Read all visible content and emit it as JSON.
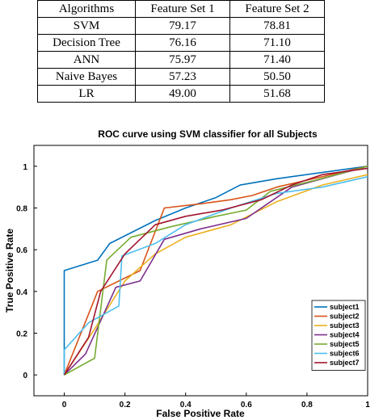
{
  "table": {
    "headers": [
      "Algorithms",
      "Feature Set 1",
      "Feature Set 2"
    ],
    "rows": [
      [
        "SVM",
        "79.17",
        "78.81"
      ],
      [
        "Decision Tree",
        "76.16",
        "71.10"
      ],
      [
        "ANN",
        "75.97",
        "71.40"
      ],
      [
        "Naive Bayes",
        "57.23",
        "50.50"
      ],
      [
        "LR",
        "49.00",
        "51.68"
      ]
    ]
  },
  "chart_data": {
    "type": "line",
    "title": "ROC curve using SVM classifier for all Subjects",
    "xlabel": "False Positive Rate",
    "ylabel": "True Positive Rate",
    "xlim": [
      -0.1,
      1.0
    ],
    "ylim": [
      -0.1,
      1.1
    ],
    "xticks": [
      "0",
      "0.2",
      "0.4",
      "0.6",
      "0.8",
      "1"
    ],
    "yticks": [
      "0",
      "0.2",
      "0.4",
      "0.6",
      "0.8",
      "1"
    ],
    "grid": false,
    "legend_position": "bottom-right",
    "series": [
      {
        "name": "subject1",
        "color": "#0072BD",
        "points": [
          [
            0,
            0
          ],
          [
            0,
            0.5
          ],
          [
            0.11,
            0.55
          ],
          [
            0.15,
            0.63
          ],
          [
            0.3,
            0.74
          ],
          [
            0.4,
            0.8
          ],
          [
            0.5,
            0.85
          ],
          [
            0.58,
            0.91
          ],
          [
            0.7,
            0.94
          ],
          [
            1,
            1
          ]
        ]
      },
      {
        "name": "subject2",
        "color": "#D95319",
        "points": [
          [
            0,
            0
          ],
          [
            0.11,
            0.4
          ],
          [
            0.25,
            0.5
          ],
          [
            0.33,
            0.8
          ],
          [
            0.45,
            0.82
          ],
          [
            0.55,
            0.84
          ],
          [
            0.62,
            0.86
          ],
          [
            0.7,
            0.9
          ],
          [
            1,
            1
          ]
        ]
      },
      {
        "name": "subject3",
        "color": "#EDB120",
        "points": [
          [
            0,
            0
          ],
          [
            0.1,
            0.22
          ],
          [
            0.2,
            0.45
          ],
          [
            0.3,
            0.58
          ],
          [
            0.4,
            0.66
          ],
          [
            0.55,
            0.72
          ],
          [
            0.7,
            0.83
          ],
          [
            0.85,
            0.91
          ],
          [
            1,
            0.96
          ]
        ]
      },
      {
        "name": "subject4",
        "color": "#7E2F8E",
        "points": [
          [
            0,
            0
          ],
          [
            0.07,
            0.1
          ],
          [
            0.17,
            0.42
          ],
          [
            0.25,
            0.45
          ],
          [
            0.33,
            0.65
          ],
          [
            0.45,
            0.7
          ],
          [
            0.6,
            0.75
          ],
          [
            0.75,
            0.9
          ],
          [
            1,
            1
          ]
        ]
      },
      {
        "name": "subject5",
        "color": "#77AC30",
        "points": [
          [
            0,
            0
          ],
          [
            0.1,
            0.08
          ],
          [
            0.14,
            0.55
          ],
          [
            0.22,
            0.66
          ],
          [
            0.35,
            0.71
          ],
          [
            0.5,
            0.76
          ],
          [
            0.6,
            0.79
          ],
          [
            0.68,
            0.88
          ],
          [
            0.82,
            0.93
          ],
          [
            1,
            1
          ]
        ]
      },
      {
        "name": "subject6",
        "color": "#4DBEEE",
        "points": [
          [
            0,
            0
          ],
          [
            0,
            0.12
          ],
          [
            0.08,
            0.25
          ],
          [
            0.18,
            0.33
          ],
          [
            0.19,
            0.57
          ],
          [
            0.3,
            0.63
          ],
          [
            0.4,
            0.72
          ],
          [
            0.55,
            0.8
          ],
          [
            0.7,
            0.87
          ],
          [
            0.85,
            0.9
          ],
          [
            1,
            0.95
          ]
        ]
      },
      {
        "name": "subject7",
        "color": "#A2142F",
        "points": [
          [
            0,
            0
          ],
          [
            0.08,
            0.18
          ],
          [
            0.12,
            0.4
          ],
          [
            0.2,
            0.58
          ],
          [
            0.3,
            0.72
          ],
          [
            0.4,
            0.76
          ],
          [
            0.52,
            0.79
          ],
          [
            0.65,
            0.84
          ],
          [
            0.75,
            0.91
          ],
          [
            0.85,
            0.96
          ],
          [
            1,
            0.99
          ]
        ]
      }
    ]
  }
}
